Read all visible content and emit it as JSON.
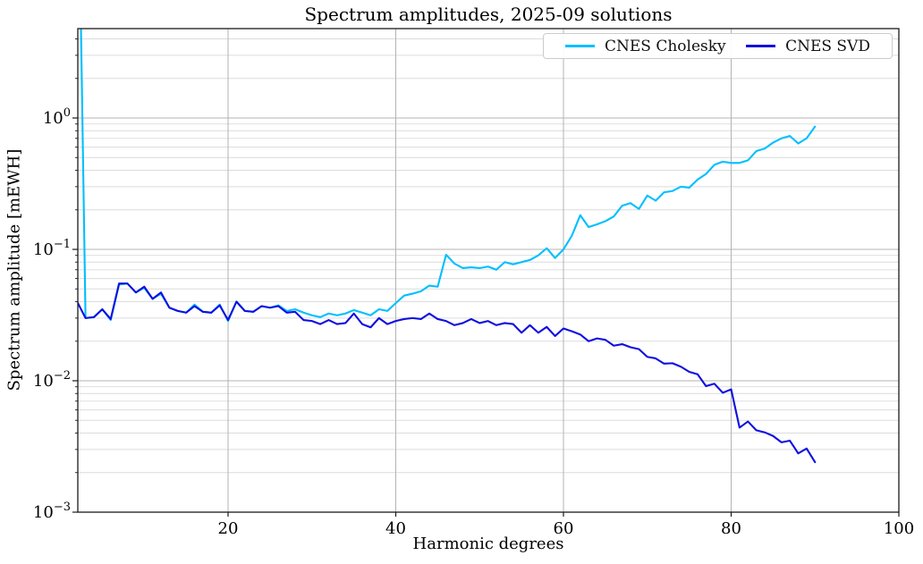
{
  "chart_data": {
    "type": "line",
    "title": "Spectrum amplitudes, 2025-09 solutions",
    "xlabel": "Harmonic degrees",
    "ylabel": "Spectrum amplitude [mEWH]",
    "yscale": "log",
    "xlim": [
      2.08,
      100
    ],
    "ylim": [
      0.001,
      4.79
    ],
    "x_ticks": [
      20,
      40,
      60,
      80,
      100
    ],
    "y_tick_exponents": [
      0,
      -1,
      -2,
      -3
    ],
    "grid": "horizontal major+minor log gridlines, vertical gridlines at major x ticks",
    "legend": {
      "position": "upper right inside plot",
      "orientation": "horizontal"
    },
    "x_degrees": {
      "from": 2,
      "to": 90,
      "step": 1
    },
    "clipped_spike": "CNES Cholesky first point (degree 2) is far above the plot top and is clipped",
    "series": [
      {
        "name": "CNES Cholesky",
        "color": "#00bfff",
        "values": [
          350,
          0.03,
          0.0305,
          0.035,
          0.029,
          0.054,
          0.055,
          0.047,
          0.051,
          0.042,
          0.046,
          0.036,
          0.034,
          0.033,
          0.038,
          0.0335,
          0.033,
          0.038,
          0.0285,
          0.04,
          0.034,
          0.0335,
          0.037,
          0.036,
          0.0375,
          0.034,
          0.035,
          0.033,
          0.0315,
          0.0305,
          0.0325,
          0.0315,
          0.0325,
          0.0345,
          0.033,
          0.0315,
          0.035,
          0.034,
          0.039,
          0.0445,
          0.046,
          0.048,
          0.053,
          0.052,
          0.091,
          0.078,
          0.072,
          0.073,
          0.072,
          0.074,
          0.07,
          0.08,
          0.077,
          0.08,
          0.083,
          0.09,
          0.102,
          0.086,
          0.1,
          0.127,
          0.182,
          0.148,
          0.155,
          0.164,
          0.178,
          0.215,
          0.225,
          0.203,
          0.257,
          0.235,
          0.272,
          0.278,
          0.3,
          0.295,
          0.34,
          0.375,
          0.44,
          0.465,
          0.455,
          0.455,
          0.476,
          0.56,
          0.585,
          0.65,
          0.7,
          0.73,
          0.64,
          0.7,
          0.86
        ]
      },
      {
        "name": "CNES SVD",
        "color": "#0f0fe0",
        "values": [
          0.04,
          0.03,
          0.0305,
          0.035,
          0.0295,
          0.055,
          0.055,
          0.047,
          0.052,
          0.042,
          0.047,
          0.036,
          0.034,
          0.033,
          0.037,
          0.0335,
          0.033,
          0.0375,
          0.029,
          0.04,
          0.034,
          0.0335,
          0.037,
          0.036,
          0.037,
          0.033,
          0.0335,
          0.029,
          0.0285,
          0.027,
          0.029,
          0.027,
          0.0275,
          0.0325,
          0.027,
          0.0255,
          0.03,
          0.027,
          0.0285,
          0.0295,
          0.03,
          0.0295,
          0.0325,
          0.0295,
          0.0285,
          0.0265,
          0.0275,
          0.0295,
          0.0275,
          0.0285,
          0.0265,
          0.0275,
          0.027,
          0.0232,
          0.0265,
          0.0232,
          0.0257,
          0.0219,
          0.025,
          0.0238,
          0.0225,
          0.02,
          0.021,
          0.0205,
          0.0185,
          0.019,
          0.018,
          0.0174,
          0.0152,
          0.0148,
          0.0135,
          0.0136,
          0.0128,
          0.0117,
          0.0112,
          0.0091,
          0.0095,
          0.0081,
          0.0086,
          0.0044,
          0.0049,
          0.0042,
          0.00405,
          0.0038,
          0.0034,
          0.0035,
          0.0028,
          0.00305,
          0.0024
        ]
      }
    ]
  }
}
